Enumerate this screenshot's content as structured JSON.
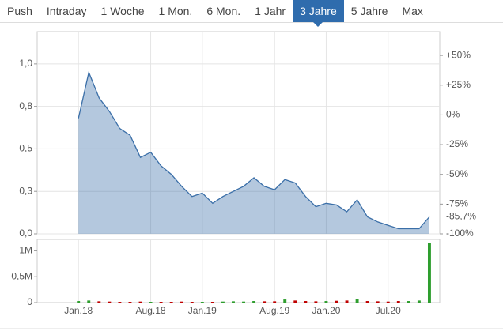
{
  "tabs": {
    "items": [
      "Push",
      "Intraday",
      "1 Woche",
      "1 Mon.",
      "6 Mon.",
      "1 Jahr",
      "3 Jahre",
      "5 Jahre",
      "Max"
    ],
    "active": 6
  },
  "chart_data": {
    "type": "area",
    "x": [
      "2018-01",
      "2018-02",
      "2018-03",
      "2018-04",
      "2018-05",
      "2018-06",
      "2018-07",
      "2018-08",
      "2018-09",
      "2018-10",
      "2018-11",
      "2018-12",
      "2019-01",
      "2019-02",
      "2019-03",
      "2019-04",
      "2019-05",
      "2019-06",
      "2019-07",
      "2019-08",
      "2019-09",
      "2019-10",
      "2019-11",
      "2019-12",
      "2020-01",
      "2020-02",
      "2020-03",
      "2020-04",
      "2020-05",
      "2020-06",
      "2020-07",
      "2020-08",
      "2020-09",
      "2020-10",
      "2020-11"
    ],
    "xlim": [
      "2017-09",
      "2020-12"
    ],
    "xticks": [
      {
        "value": "2018-01",
        "label": "Jan.18"
      },
      {
        "value": "2018-08",
        "label": "Aug.18"
      },
      {
        "value": "2019-01",
        "label": "Jan.19"
      },
      {
        "value": "2019-08",
        "label": "Aug.19"
      },
      {
        "value": "2020-01",
        "label": "Jan.20"
      },
      {
        "value": "2020-07",
        "label": "Jul.20"
      }
    ],
    "series": [
      {
        "color": "#3b6fa8",
        "values": [
          0.68,
          0.95,
          0.8,
          0.72,
          0.62,
          0.58,
          0.45,
          0.48,
          0.4,
          0.35,
          0.28,
          0.22,
          0.24,
          0.18,
          0.22,
          0.25,
          0.28,
          0.33,
          0.28,
          0.26,
          0.32,
          0.3,
          0.22,
          0.16,
          0.18,
          0.17,
          0.13,
          0.2,
          0.1,
          0.07,
          0.05,
          0.03,
          0.03,
          0.03,
          0.1
        ]
      }
    ],
    "ylim": [
      0,
      1.19
    ],
    "yticks": [
      {
        "value": 0,
        "label": "0,0"
      },
      {
        "value": 0.25,
        "label": "0,3"
      },
      {
        "value": 0.5,
        "label": "0,5"
      },
      {
        "value": 0.75,
        "label": "0,8"
      },
      {
        "value": 1.0,
        "label": "1,0"
      }
    ],
    "y2lim": [
      -100,
      70
    ],
    "y2ticks": [
      {
        "value": 50,
        "label": "+50%"
      },
      {
        "value": 25,
        "label": "+25%"
      },
      {
        "value": 0,
        "label": "0%"
      },
      {
        "value": -25,
        "label": "-25%"
      },
      {
        "value": -50,
        "label": "-50%"
      },
      {
        "value": -75,
        "label": "-75%"
      },
      {
        "value": -100,
        "label": "-100%"
      }
    ],
    "last_change": {
      "value": -85.7,
      "label": "-85,7%",
      "color": "#b00020"
    },
    "grid": true,
    "volume": {
      "type": "bar",
      "values": [
        30000,
        40000,
        25000,
        20000,
        15000,
        15000,
        20000,
        15000,
        15000,
        15000,
        20000,
        15000,
        15000,
        15000,
        20000,
        25000,
        20000,
        30000,
        25000,
        25000,
        60000,
        40000,
        30000,
        25000,
        30000,
        35000,
        40000,
        70000,
        30000,
        25000,
        20000,
        30000,
        30000,
        40000,
        1150000
      ],
      "up_color": "#2e9e2e",
      "down_color": "#c00000",
      "ylim": [
        0,
        1220000
      ],
      "yticks": [
        {
          "value": 0,
          "label": "0"
        },
        {
          "value": 500000,
          "label": "0,5M"
        },
        {
          "value": 1000000,
          "label": "1M"
        }
      ]
    }
  }
}
